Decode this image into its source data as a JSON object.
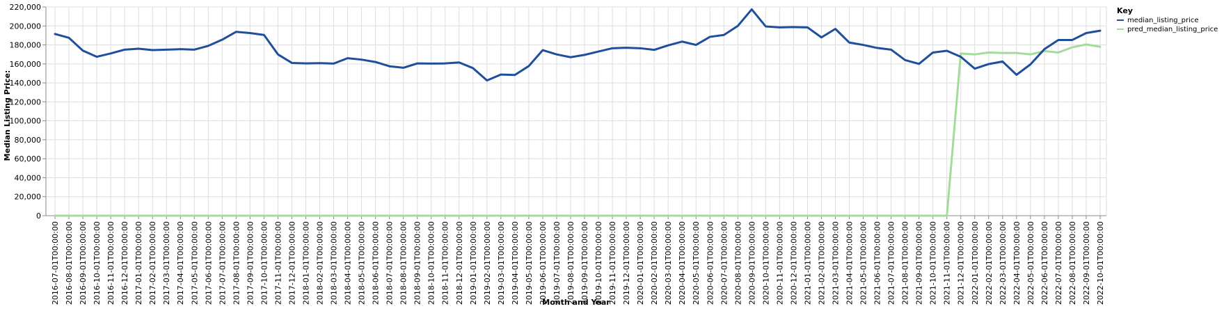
{
  "chart_data": {
    "type": "line",
    "xlabel": "Month and Year",
    "ylabel": "Median Listing Price:",
    "ylim": [
      0,
      220000
    ],
    "yticks": [
      0,
      20000,
      40000,
      60000,
      80000,
      100000,
      120000,
      140000,
      160000,
      180000,
      200000,
      220000
    ],
    "ytick_labels": [
      "0",
      "20,000",
      "40,000",
      "60,000",
      "80,000",
      "100,000",
      "120,000",
      "140,000",
      "160,000",
      "180,000",
      "200,000",
      "220,000"
    ],
    "grid": true,
    "legend": {
      "title": "Key",
      "placement": "top-right"
    },
    "x": [
      "2016-07-01T00:00:00",
      "2016-08-01T00:00:00",
      "2016-09-01T00:00:00",
      "2016-10-01T00:00:00",
      "2016-11-01T00:00:00",
      "2016-12-01T00:00:00",
      "2017-01-01T00:00:00",
      "2017-02-01T00:00:00",
      "2017-03-01T00:00:00",
      "2017-04-01T00:00:00",
      "2017-05-01T00:00:00",
      "2017-06-01T00:00:00",
      "2017-07-01T00:00:00",
      "2017-08-01T00:00:00",
      "2017-09-01T00:00:00",
      "2017-10-01T00:00:00",
      "2017-11-01T00:00:00",
      "2017-12-01T00:00:00",
      "2018-01-01T00:00:00",
      "2018-02-01T00:00:00",
      "2018-03-01T00:00:00",
      "2018-04-01T00:00:00",
      "2018-05-01T00:00:00",
      "2018-06-01T00:00:00",
      "2018-07-01T00:00:00",
      "2018-08-01T00:00:00",
      "2018-09-01T00:00:00",
      "2018-10-01T00:00:00",
      "2018-11-01T00:00:00",
      "2018-12-01T00:00:00",
      "2019-01-01T00:00:00",
      "2019-02-01T00:00:00",
      "2019-03-01T00:00:00",
      "2019-04-01T00:00:00",
      "2019-05-01T00:00:00",
      "2019-06-01T00:00:00",
      "2019-07-01T00:00:00",
      "2019-08-01T00:00:00",
      "2019-09-01T00:00:00",
      "2019-10-01T00:00:00",
      "2019-11-01T00:00:00",
      "2019-12-01T00:00:00",
      "2020-01-01T00:00:00",
      "2020-02-01T00:00:00",
      "2020-03-01T00:00:00",
      "2020-04-01T00:00:00",
      "2020-05-01T00:00:00",
      "2020-06-01T00:00:00",
      "2020-07-01T00:00:00",
      "2020-08-01T00:00:00",
      "2020-09-01T00:00:00",
      "2020-10-01T00:00:00",
      "2020-11-01T00:00:00",
      "2020-12-01T00:00:00",
      "2021-01-01T00:00:00",
      "2021-02-01T00:00:00",
      "2021-03-01T00:00:00",
      "2021-04-01T00:00:00",
      "2021-05-01T00:00:00",
      "2021-06-01T00:00:00",
      "2021-07-01T00:00:00",
      "2021-08-01T00:00:00",
      "2021-09-01T00:00:00",
      "2021-10-01T00:00:00",
      "2021-11-01T00:00:00",
      "2021-12-01T00:00:00",
      "2022-01-01T00:00:00",
      "2022-02-01T00:00:00",
      "2022-03-01T00:00:00",
      "2022-04-01T00:00:00",
      "2022-05-01T00:00:00",
      "2022-06-01T00:00:00",
      "2022-07-01T00:00:00",
      "2022-08-01T00:00:00",
      "2022-09-01T00:00:00",
      "2022-10-01T00:00:00"
    ],
    "series": [
      {
        "name": "median_listing_price",
        "color": "#1f4e9c",
        "values": [
          191500,
          187500,
          174000,
          167500,
          171000,
          175000,
          176000,
          174500,
          175000,
          175500,
          175000,
          179000,
          185500,
          193800,
          192500,
          190500,
          170000,
          161000,
          160500,
          160800,
          160300,
          166000,
          164500,
          162000,
          157500,
          155900,
          160500,
          160300,
          160500,
          161500,
          155500,
          142500,
          148800,
          148300,
          157700,
          174500,
          170000,
          167000,
          169500,
          173000,
          176500,
          177000,
          176500,
          174800,
          179500,
          183500,
          180000,
          188500,
          190500,
          200000,
          217500,
          199500,
          198500,
          198800,
          198500,
          187900,
          196900,
          182500,
          180000,
          176800,
          175000,
          164000,
          160000,
          172000,
          173800,
          167500,
          155000,
          159800,
          162500,
          148500,
          159500,
          175500,
          185200,
          185200,
          192500,
          195000
        ]
      },
      {
        "name": "pred_median_listing_price",
        "color": "#a3dc9a",
        "values": [
          0,
          0,
          0,
          0,
          0,
          0,
          0,
          0,
          0,
          0,
          0,
          0,
          0,
          0,
          0,
          0,
          0,
          0,
          0,
          0,
          0,
          0,
          0,
          0,
          0,
          0,
          0,
          0,
          0,
          0,
          0,
          0,
          0,
          0,
          0,
          0,
          0,
          0,
          0,
          0,
          0,
          0,
          0,
          0,
          0,
          0,
          0,
          0,
          0,
          0,
          0,
          0,
          0,
          0,
          0,
          0,
          0,
          0,
          0,
          0,
          0,
          0,
          0,
          0,
          0,
          171000,
          170000,
          172000,
          171500,
          171500,
          170000,
          173500,
          172000,
          177500,
          180500,
          178000
        ]
      }
    ]
  }
}
